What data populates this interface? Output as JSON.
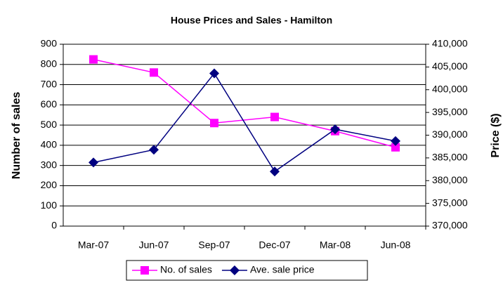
{
  "chart_data": {
    "type": "line",
    "title": "House Prices and Sales - Hamilton",
    "y_label": "Number of sales",
    "y2_label": "Price ($)",
    "categories": [
      "Mar-07",
      "Jun-07",
      "Sep-07",
      "Dec-07",
      "Mar-08",
      "Jun-08"
    ],
    "series": [
      {
        "name": "No. of sales",
        "color": "#ff00ff",
        "marker": "square",
        "values": [
          825,
          760,
          510,
          540,
          470,
          390
        ]
      },
      {
        "name": "Ave. sale price",
        "color": "#000080",
        "marker": "diamond",
        "axis": "y2",
        "values": [
          384000,
          386800,
          403600,
          382000,
          391300,
          388700
        ]
      }
    ],
    "ylim": [
      0,
      900
    ],
    "yticks": [
      0,
      100,
      200,
      300,
      400,
      500,
      600,
      700,
      800,
      900
    ],
    "y2lim": [
      370000,
      410000
    ],
    "y2ticks": [
      {
        "value": 370000,
        "label": "370,000"
      },
      {
        "value": 375000,
        "label": "375,000"
      },
      {
        "value": 380000,
        "label": "380,000"
      },
      {
        "value": 385000,
        "label": "385,000"
      },
      {
        "value": 390000,
        "label": "390,000"
      },
      {
        "value": 395000,
        "label": "395,000"
      },
      {
        "value": 400000,
        "label": "400,000"
      },
      {
        "value": 405000,
        "label": "405,000"
      },
      {
        "value": 410000,
        "label": "410,000"
      }
    ],
    "grid": true,
    "legend": "bottom"
  }
}
